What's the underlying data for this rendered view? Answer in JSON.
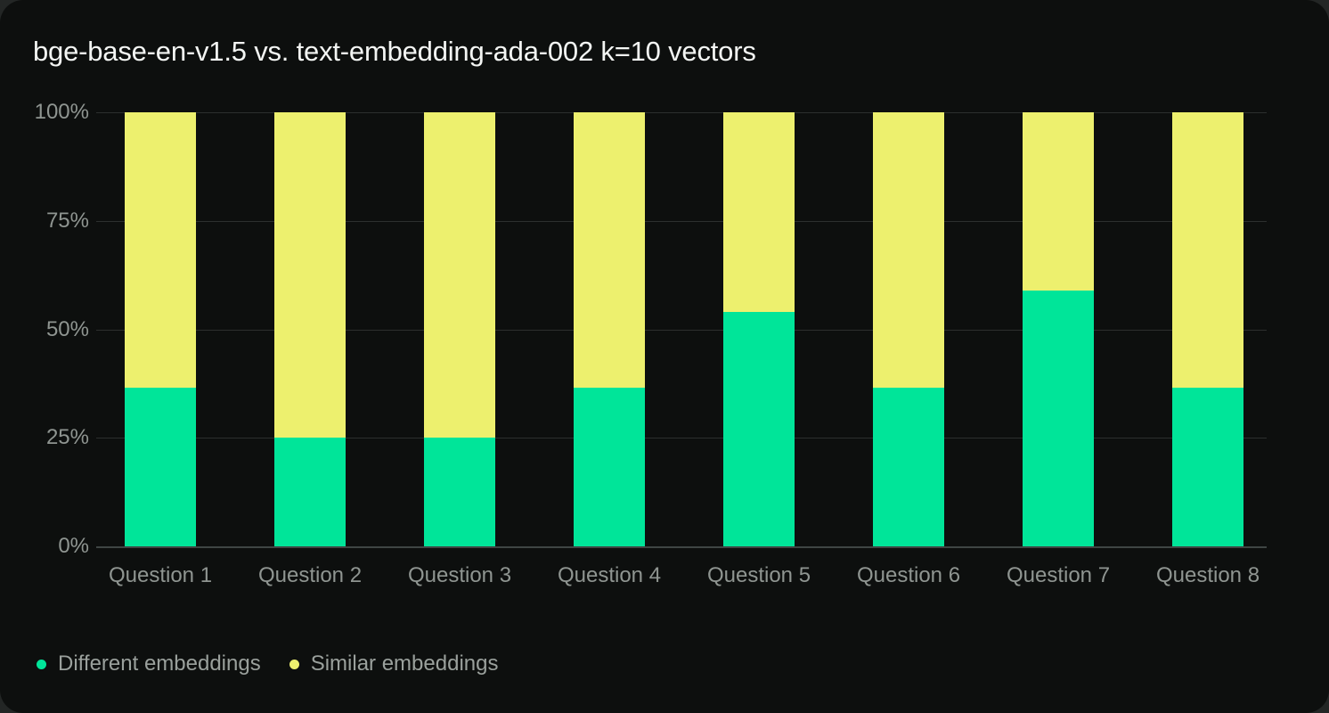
{
  "colors": {
    "outer_background": "#232625",
    "card_background": "#0d0f0e",
    "grid_line": "#2c2f2e",
    "axis_line": "#3f4543",
    "tick_label": "#8f9591",
    "legend_label": "#9aa09c",
    "title_text": "#f3f5f3",
    "series_different": "#00e599",
    "series_similar": "#edf06e"
  },
  "chart_data": {
    "type": "bar",
    "stacked": true,
    "stack_unit": "percent",
    "title": "bge-base-en-v1.5 vs. text-embedding-ada-002 k=10 vectors",
    "xlabel": "",
    "ylabel": "",
    "categories": [
      "Question 1",
      "Question 2",
      "Question 3",
      "Question 4",
      "Question 5",
      "Question 6",
      "Question 7",
      "Question 8"
    ],
    "series": [
      {
        "name": "Different embeddings",
        "color": "#00e599",
        "values": [
          36.5,
          25,
          25,
          36.5,
          54,
          36.5,
          59,
          36.5
        ]
      },
      {
        "name": "Similar embeddings",
        "color": "#edf06e",
        "values": [
          63.5,
          75,
          75,
          63.5,
          46,
          63.5,
          41,
          63.5
        ]
      }
    ],
    "ylim": [
      0,
      100
    ],
    "y_ticks": [
      {
        "value": 100,
        "label": "100%"
      },
      {
        "value": 75,
        "label": "75%"
      },
      {
        "value": 50,
        "label": "50%"
      },
      {
        "value": 25,
        "label": "25%"
      },
      {
        "value": 0,
        "label": "0%"
      }
    ],
    "grid": true,
    "legend_position": "bottom-left"
  }
}
